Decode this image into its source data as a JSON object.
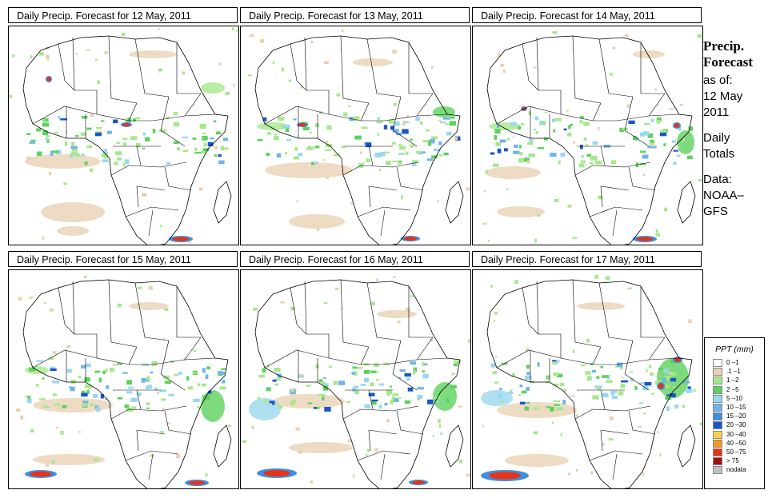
{
  "panels": [
    {
      "title": "Daily Precip. Forecast for  12 May, 2011"
    },
    {
      "title": "Daily Precip. Forecast for  13 May, 2011"
    },
    {
      "title": "Daily Precip. Forecast for  14 May, 2011"
    },
    {
      "title": "Daily Precip. Forecast for  15 May, 2011"
    },
    {
      "title": "Daily Precip. Forecast for  16 May, 2011"
    },
    {
      "title": "Daily Precip. Forecast for  17 May, 2011"
    }
  ],
  "sidebar": {
    "heading1": "Precip.",
    "heading2": "Forecast",
    "asof": "as of:",
    "date1": "12 May",
    "date2": "2011",
    "daily1": "Daily",
    "daily2": "Totals",
    "data1": "Data:",
    "data2": "NOAA–",
    "data3": "GFS"
  },
  "legend": {
    "title": "PPT (mm)",
    "items": [
      {
        "label": "0 –1",
        "color": "#ffffff"
      },
      {
        "label": ".1 –1",
        "color": "#e8d2b4"
      },
      {
        "label": "1 –2",
        "color": "#a6e88c"
      },
      {
        "label": "2 –5",
        "color": "#5cd25c"
      },
      {
        "label": "5 –10",
        "color": "#9ad8ee"
      },
      {
        "label": "10 –15",
        "color": "#6fb4ea"
      },
      {
        "label": "15 –20",
        "color": "#3f8ee0"
      },
      {
        "label": "20 –30",
        "color": "#1b55c8"
      },
      {
        "label": "30 –40",
        "color": "#f5d24a"
      },
      {
        "label": "40 –50",
        "color": "#f59a1a"
      },
      {
        "label": "50 –75",
        "color": "#e83214"
      },
      {
        "label": "> 75",
        "color": "#a01010"
      },
      {
        "label": "nodata",
        "color": "#c0c0c0"
      }
    ]
  }
}
